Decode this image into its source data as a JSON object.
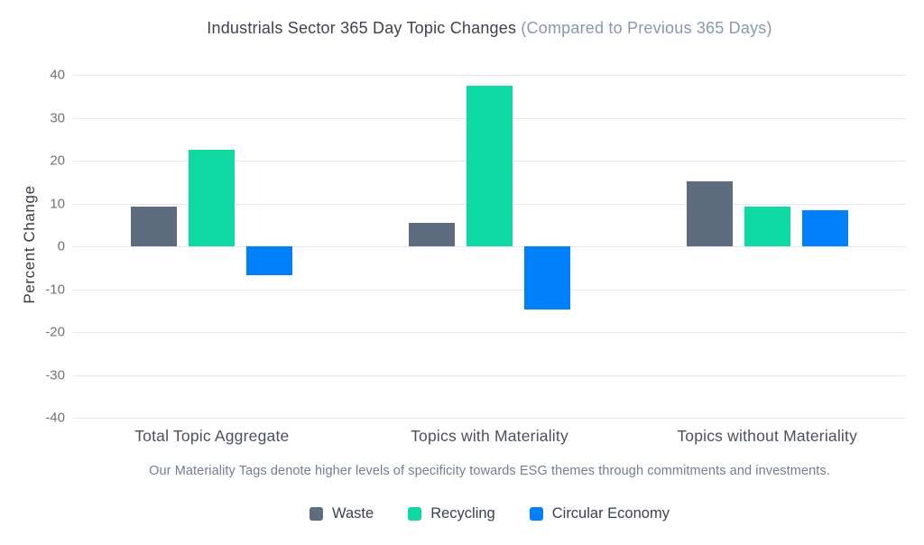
{
  "title": {
    "main": "Industrials Sector 365 Day Topic Changes",
    "suffix": "(Compared to Previous 365 Days)"
  },
  "caption": "Our Materiality Tags denote higher levels of specificity towards ESG themes through commitments and investments.",
  "colors": {
    "title_main": "#3d4450",
    "title_suffix": "#8a97ad",
    "gridline": "#e3e9f2",
    "axis_text": "#6a7486",
    "waste": "#5e6c7f",
    "recycling": "#0ed9a2",
    "circular_economy": "#0080fb"
  },
  "chart_data": {
    "type": "bar",
    "title": "Industrials Sector 365 Day Topic Changes (Compared to Previous 365 Days)",
    "xlabel": "",
    "ylabel": "Percent Change",
    "ylim": [
      -40,
      40
    ],
    "yticks": [
      40,
      30,
      20,
      10,
      0,
      -10,
      -20,
      -30,
      -40
    ],
    "grid": true,
    "legend_position": "bottom",
    "categories": [
      "Total Topic Aggregate",
      "Topics with Materiality",
      "Topics without Materiality"
    ],
    "series": [
      {
        "name": "Waste",
        "color": "#5e6c7f",
        "values": [
          9.3,
          5.4,
          15.2
        ]
      },
      {
        "name": "Recycling",
        "color": "#0ed9a2",
        "values": [
          22.5,
          37.4,
          9.3
        ]
      },
      {
        "name": "Circular Economy",
        "color": "#0080fb",
        "values": [
          -6.8,
          -14.8,
          8.4
        ]
      }
    ]
  }
}
